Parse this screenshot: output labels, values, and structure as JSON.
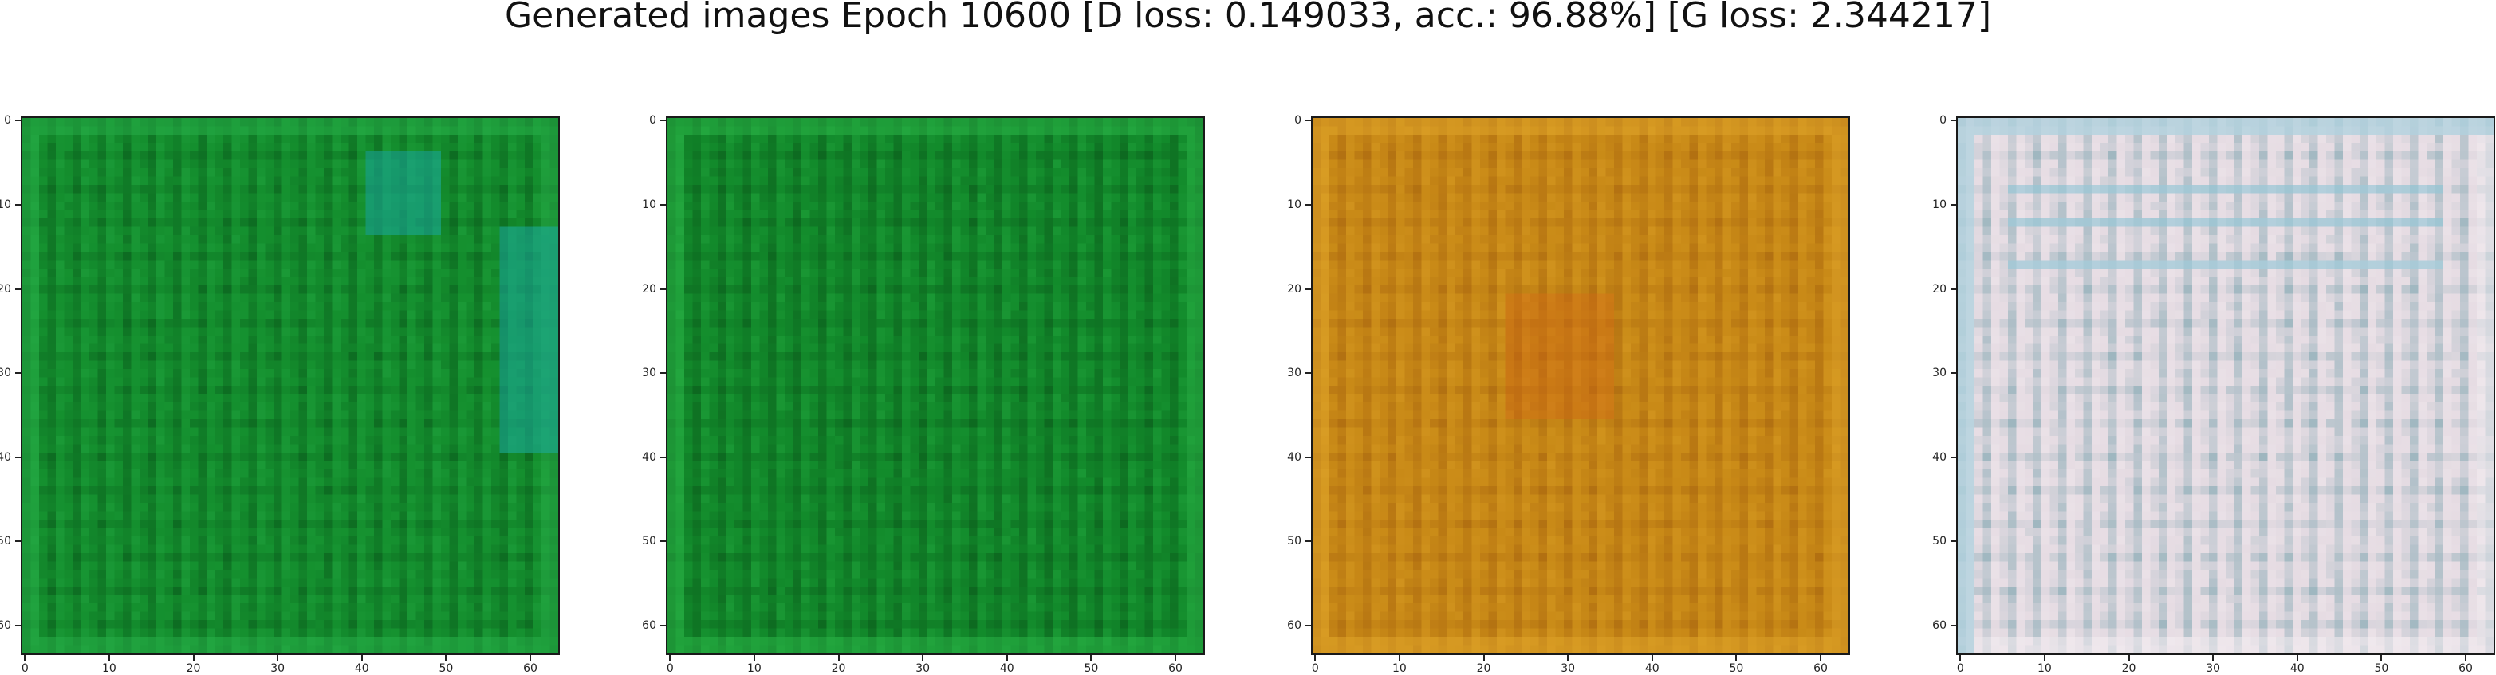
{
  "figure": {
    "title": "Generated images Epoch 10600 [D loss: 0.149033, acc.: 96.88%] [G loss: 2.344217]"
  },
  "axes": {
    "xticks": [
      "0",
      "10",
      "20",
      "30",
      "40",
      "50",
      "60"
    ],
    "yticks": [
      "0",
      "10",
      "20",
      "30",
      "40",
      "50",
      "60"
    ],
    "xtick_values": [
      0,
      10,
      20,
      30,
      40,
      50,
      60
    ],
    "ytick_values": [
      0,
      10,
      20,
      30,
      40,
      50,
      60
    ],
    "range": [
      -0.5,
      63.5
    ]
  },
  "images": [
    {
      "id": "green-1",
      "colors": {
        "base": "#148f2e",
        "dark": "#0a5c1c",
        "light": "#28b04a",
        "accent": "#1aa7a0"
      }
    },
    {
      "id": "green-2",
      "colors": {
        "base": "#128a2b",
        "dark": "#0b5a1b",
        "light": "#2bb548",
        "accent": "#129a38"
      }
    },
    {
      "id": "orange-3",
      "colors": {
        "base": "#c98a17",
        "dark": "#a8650f",
        "light": "#e0a52a",
        "accent": "#cf5d12"
      }
    },
    {
      "id": "pale-4",
      "colors": {
        "base": "#e6dce3",
        "dark": "#7fa6b0",
        "light": "#f4eef2",
        "accent": "#9cc9d8"
      }
    }
  ]
}
